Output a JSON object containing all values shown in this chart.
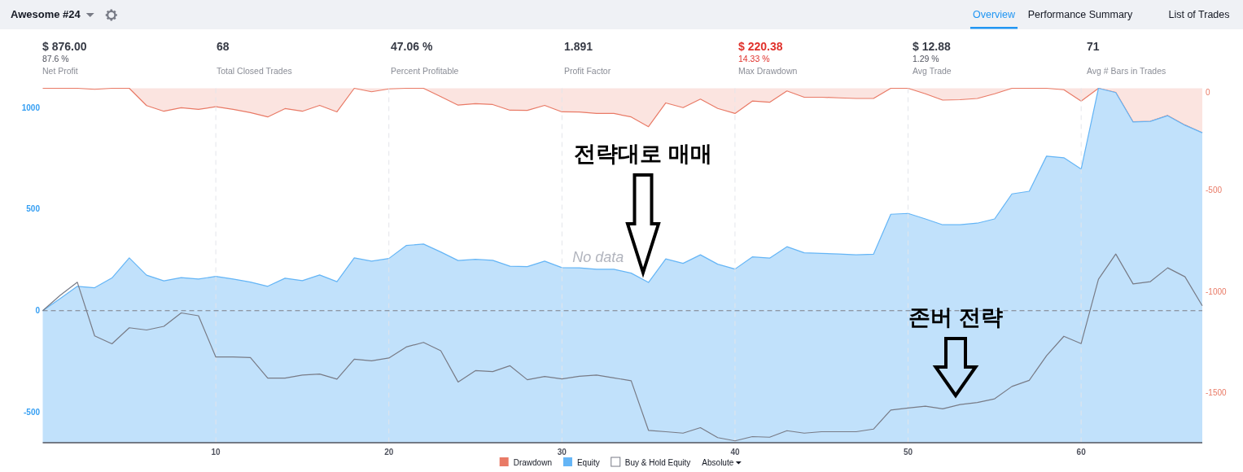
{
  "chart_data": {
    "type": "area",
    "title": "Awesome #24",
    "x": [
      0,
      1,
      2,
      3,
      4,
      5,
      6,
      7,
      8,
      9,
      10,
      11,
      12,
      13,
      14,
      15,
      16,
      17,
      18,
      19,
      20,
      21,
      22,
      23,
      24,
      25,
      26,
      27,
      28,
      29,
      30,
      31,
      32,
      33,
      34,
      35,
      36,
      37,
      38,
      39,
      40,
      41,
      42,
      43,
      44,
      45,
      46,
      47,
      48,
      49,
      50,
      51,
      52,
      53,
      54,
      55,
      56,
      57,
      58,
      59,
      60,
      61,
      62,
      63,
      64,
      65,
      66,
      67
    ],
    "xlim": [
      0,
      67
    ],
    "xticks": [
      10,
      20,
      30,
      40,
      50,
      60
    ],
    "ylim": [
      -650,
      1095
    ],
    "yticks": [
      -500,
      0,
      500,
      1000
    ],
    "y2lim": [
      -1745,
      0
    ],
    "y2ticks": [
      -1500,
      -1000,
      -500,
      0
    ],
    "grid": "x",
    "legend": "bottom",
    "ref_lines": [
      {
        "axis": "y",
        "value": 0,
        "color": "#787b86",
        "line_style": "dashed"
      }
    ],
    "bands": [
      {
        "axis": "y",
        "from": -650,
        "to": 0,
        "color": "#c1e1fb"
      }
    ],
    "series": [
      {
        "name": "Drawdown",
        "axis": "y2",
        "color": "#e97a66",
        "values": [
          0,
          0,
          0,
          -5,
          0,
          0,
          -85,
          -113,
          -96,
          -104,
          -91,
          -104,
          -120,
          -141,
          -100,
          -113,
          -84,
          -116,
          0,
          -17,
          -3,
          0,
          0,
          -41,
          -83,
          -76,
          -80,
          -108,
          -109,
          -84,
          -116,
          -117,
          -124,
          -124,
          -141,
          -189,
          -72,
          -95,
          -53,
          -99,
          -124,
          -63,
          -69,
          -13,
          -44,
          -44,
          -47,
          -50,
          -50,
          0,
          0,
          -27,
          -58,
          -56,
          -50,
          -27,
          0,
          0,
          0,
          -7,
          -63,
          0,
          -20,
          -165,
          -163,
          -134,
          -181,
          -220
        ]
      },
      {
        "name": "Equity",
        "axis": "y",
        "color": "#64b5f6",
        "values": [
          0,
          59,
          120,
          113,
          161,
          260,
          175,
          147,
          163,
          156,
          169,
          156,
          141,
          120,
          160,
          148,
          176,
          143,
          260,
          244,
          257,
          321,
          328,
          289,
          247,
          253,
          248,
          219,
          217,
          244,
          212,
          211,
          204,
          204,
          185,
          139,
          255,
          233,
          275,
          229,
          205,
          265,
          259,
          315,
          285,
          282,
          279,
          275,
          278,
          475,
          479,
          452,
          423,
          423,
          431,
          452,
          575,
          588,
          761,
          753,
          697,
          1095,
          1074,
          929,
          932,
          960,
          913,
          876
        ]
      },
      {
        "name": "Buy & Hold Equity",
        "type": "line",
        "axis": "y",
        "color": "#787b86",
        "values": [
          0,
          75,
          140,
          -124,
          -163,
          -84,
          -95,
          -77,
          -11,
          -25,
          -228,
          -228,
          -231,
          -332,
          -332,
          -317,
          -312,
          -337,
          -239,
          -247,
          -233,
          -179,
          -156,
          -197,
          -351,
          -295,
          -300,
          -271,
          -340,
          -324,
          -336,
          -323,
          -317,
          -331,
          -345,
          -589,
          -596,
          -603,
          -576,
          -625,
          -641,
          -620,
          -623,
          -591,
          -603,
          -596,
          -596,
          -596,
          -583,
          -489,
          -479,
          -470,
          -483,
          -462,
          -452,
          -434,
          -373,
          -343,
          -222,
          -126,
          -162,
          155,
          279,
          132,
          143,
          211,
          167,
          24
        ]
      }
    ],
    "annotations": [
      "Overview",
      "Performance Summary",
      "List of Trades",
      "$ 876.00",
      "87.6 %",
      "Net Profit",
      "68",
      "Total Closed Trades",
      "47.06 %",
      "Percent Profitable",
      "1.891",
      "Profit Factor",
      "$ 220.38",
      "14.33 %",
      "Max Drawdown",
      "$ 12.88",
      "1.29 %",
      "Avg Trade",
      "71",
      "Avg # Bars in Trades",
      "No data",
      "Absolute",
      "전략대로 매매",
      "존버 전략"
    ]
  }
}
